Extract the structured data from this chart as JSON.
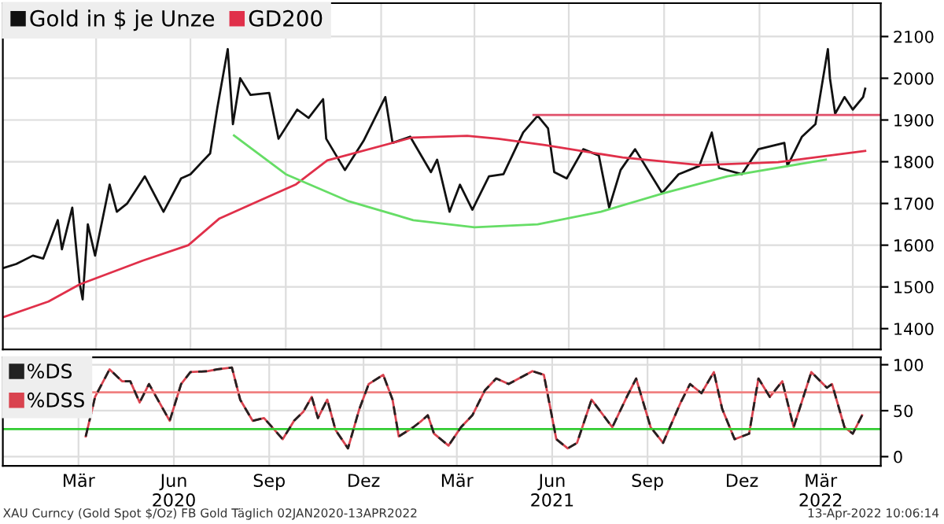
{
  "chart_data": [
    {
      "type": "line",
      "legend": "top left",
      "grid": true,
      "tick_labels": "y",
      "marker": "none",
      "xlim": [
        "2020-01-02",
        "2022-04-28"
      ],
      "ylim": [
        1350,
        2180
      ],
      "yticks": [
        1400,
        1500,
        1600,
        1700,
        1800,
        1900,
        2000,
        2100
      ],
      "series": [
        {
          "name": "Gold in $ je Unze",
          "color": "#111111",
          "x": [
            "2020-01-02",
            "2020-01-15",
            "2020-01-31",
            "2020-02-10",
            "2020-02-24",
            "2020-02-28",
            "2020-03-09",
            "2020-03-16",
            "2020-03-19",
            "2020-03-24",
            "2020-03-31",
            "2020-04-14",
            "2020-04-21",
            "2020-05-01",
            "2020-05-18",
            "2020-06-05",
            "2020-06-22",
            "2020-07-01",
            "2020-07-20",
            "2020-07-27",
            "2020-08-06",
            "2020-08-11",
            "2020-08-18",
            "2020-08-28",
            "2020-09-15",
            "2020-09-24",
            "2020-10-12",
            "2020-10-23",
            "2020-11-06",
            "2020-11-09",
            "2020-11-27",
            "2020-12-15",
            "2021-01-05",
            "2021-01-12",
            "2021-01-29",
            "2021-02-18",
            "2021-02-24",
            "2021-03-08",
            "2021-03-18",
            "2021-03-30",
            "2021-04-15",
            "2021-04-29",
            "2021-05-18",
            "2021-06-01",
            "2021-06-11",
            "2021-06-17",
            "2021-06-29",
            "2021-07-15",
            "2021-07-30",
            "2021-08-09",
            "2021-08-20",
            "2021-09-03",
            "2021-09-29",
            "2021-10-15",
            "2021-11-04",
            "2021-11-16",
            "2021-11-23",
            "2021-12-15",
            "2021-12-31",
            "2022-01-25",
            "2022-01-28",
            "2022-02-11",
            "2022-02-24",
            "2022-03-08",
            "2022-03-10",
            "2022-03-15",
            "2022-03-24",
            "2022-04-01",
            "2022-04-11",
            "2022-04-13"
          ],
          "values": [
            1545,
            1555,
            1575,
            1568,
            1660,
            1590,
            1690,
            1510,
            1470,
            1650,
            1575,
            1745,
            1680,
            1700,
            1765,
            1680,
            1760,
            1770,
            1820,
            1930,
            2070,
            1890,
            2000,
            1960,
            1965,
            1855,
            1925,
            1905,
            1950,
            1855,
            1780,
            1850,
            1955,
            1845,
            1860,
            1775,
            1805,
            1680,
            1745,
            1685,
            1765,
            1770,
            1870,
            1910,
            1880,
            1775,
            1760,
            1830,
            1815,
            1690,
            1780,
            1830,
            1725,
            1770,
            1790,
            1870,
            1785,
            1770,
            1830,
            1845,
            1790,
            1860,
            1890,
            2070,
            2000,
            1915,
            1955,
            1925,
            1955,
            1975
          ]
        },
        {
          "name": "GD200",
          "color": "#e0304a",
          "x": [
            "2020-01-02",
            "2020-02-15",
            "2020-03-16",
            "2020-05-16",
            "2020-06-29",
            "2020-07-29",
            "2020-10-11",
            "2020-11-10",
            "2021-01-31",
            "2021-03-25",
            "2021-04-24",
            "2021-06-08",
            "2021-08-22",
            "2021-11-05",
            "2022-01-19",
            "2022-04-13"
          ],
          "values": [
            1427,
            1465,
            1506,
            1563,
            1600,
            1664,
            1746,
            1803,
            1858,
            1862,
            1855,
            1840,
            1810,
            1792,
            1799,
            1826
          ]
        },
        {
          "color": "#66dd66",
          "x": [
            "2020-08-12",
            "2020-10-01",
            "2020-12-01",
            "2021-02-01",
            "2021-04-01",
            "2021-06-01",
            "2021-08-01",
            "2021-10-01",
            "2021-12-01",
            "2022-03-06"
          ],
          "values": [
            1863,
            1770,
            1705,
            1660,
            1643,
            1650,
            1680,
            1725,
            1765,
            1805
          ]
        },
        {
          "color": "#e0506a",
          "x": [
            "2021-05-28",
            "2022-04-28"
          ],
          "values": [
            1912,
            1912
          ]
        }
      ]
    },
    {
      "type": "line",
      "legend": "top left",
      "grid": true,
      "marker": "none",
      "xlim": [
        "2020-01-02",
        "2022-04-28"
      ],
      "ylim": [
        -10,
        108
      ],
      "yticks": [
        0,
        50,
        100
      ],
      "xticks": [
        {
          "value": "2020-03-15",
          "label": "Mär"
        },
        {
          "value": "2020-06-15",
          "label": "Jun\n2020"
        },
        {
          "value": "2020-09-15",
          "label": "Sep"
        },
        {
          "value": "2020-12-15",
          "label": "Dez"
        },
        {
          "value": "2021-03-15",
          "label": "Mär"
        },
        {
          "value": "2021-06-15",
          "label": "Jun\n2021"
        },
        {
          "value": "2021-09-15",
          "label": "Sep"
        },
        {
          "value": "2021-12-15",
          "label": "Dez"
        },
        {
          "value": "2022-03-01",
          "label": "Mär\n2022"
        }
      ],
      "ref_lines": [
        {
          "axis": "y",
          "value": 70,
          "color": "#f08080"
        },
        {
          "axis": "y",
          "value": 30,
          "color": "#33cc33"
        }
      ],
      "annotations": [
        "XAU Curncy (Gold Spot $/Oz) FB Gold Täglich 02JAN2020-13APR2022",
        "13-Apr-2022 10:06:14"
      ],
      "series": [
        {
          "name": "%DS",
          "color": "#222222",
          "line_style": "dashed",
          "x": [
            "2020-03-22",
            "2020-03-31",
            "2020-04-14",
            "2020-04-26",
            "2020-05-04",
            "2020-05-13",
            "2020-05-22",
            "2020-06-11",
            "2020-06-22",
            "2020-07-01",
            "2020-07-18",
            "2020-07-27",
            "2020-08-10",
            "2020-08-18",
            "2020-08-30",
            "2020-09-10",
            "2020-09-28",
            "2020-10-09",
            "2020-10-18",
            "2020-10-26",
            "2020-11-01",
            "2020-11-10",
            "2020-11-18",
            "2020-11-30",
            "2020-12-11",
            "2020-12-20",
            "2021-01-03",
            "2021-01-12",
            "2021-01-18",
            "2021-02-01",
            "2021-02-09",
            "2021-02-15",
            "2021-02-21",
            "2021-03-07",
            "2021-03-19",
            "2021-03-30",
            "2021-04-11",
            "2021-04-22",
            "2021-05-04",
            "2021-05-27",
            "2021-06-07",
            "2021-06-19",
            "2021-06-30",
            "2021-07-09",
            "2021-07-23",
            "2021-08-12",
            "2021-08-26",
            "2021-09-04",
            "2021-09-18",
            "2021-09-30",
            "2021-10-17",
            "2021-10-26",
            "2021-11-06",
            "2021-11-18",
            "2021-11-26",
            "2021-12-08",
            "2021-12-22",
            "2021-12-31",
            "2022-01-11",
            "2022-01-23",
            "2022-02-03",
            "2022-02-20",
            "2022-03-07",
            "2022-03-12",
            "2022-03-24",
            "2022-04-01",
            "2022-04-10"
          ],
          "values": [
            22,
            65,
            95,
            82,
            82,
            59,
            79,
            39,
            79,
            92,
            93,
            95,
            97,
            62,
            39,
            42,
            19,
            39,
            49,
            65,
            42,
            62,
            29,
            9,
            52,
            79,
            89,
            62,
            22,
            32,
            39,
            45,
            25,
            12,
            32,
            45,
            72,
            85,
            79,
            93,
            89,
            19,
            9,
            15,
            62,
            32,
            65,
            85,
            32,
            15,
            59,
            79,
            69,
            92,
            52,
            19,
            25,
            85,
            65,
            82,
            32,
            92,
            75,
            79,
            32,
            25,
            45
          ]
        },
        {
          "name": "%DSS",
          "color": "#d9434f",
          "line_style": "solid",
          "x": [
            "2020-03-22",
            "2020-03-31",
            "2020-04-14",
            "2020-04-26",
            "2020-05-04",
            "2020-05-13",
            "2020-05-22",
            "2020-06-11",
            "2020-06-22",
            "2020-07-01",
            "2020-07-18",
            "2020-07-27",
            "2020-08-10",
            "2020-08-18",
            "2020-08-30",
            "2020-09-10",
            "2020-09-28",
            "2020-10-09",
            "2020-10-18",
            "2020-10-26",
            "2020-11-01",
            "2020-11-10",
            "2020-11-18",
            "2020-11-30",
            "2020-12-11",
            "2020-12-20",
            "2021-01-03",
            "2021-01-12",
            "2021-01-18",
            "2021-02-01",
            "2021-02-09",
            "2021-02-15",
            "2021-02-21",
            "2021-03-07",
            "2021-03-19",
            "2021-03-30",
            "2021-04-11",
            "2021-04-22",
            "2021-05-04",
            "2021-05-27",
            "2021-06-07",
            "2021-06-19",
            "2021-06-30",
            "2021-07-09",
            "2021-07-23",
            "2021-08-12",
            "2021-08-26",
            "2021-09-04",
            "2021-09-18",
            "2021-09-30",
            "2021-10-17",
            "2021-10-26",
            "2021-11-06",
            "2021-11-18",
            "2021-11-26",
            "2021-12-08",
            "2021-12-22",
            "2021-12-31",
            "2022-01-11",
            "2022-01-23",
            "2022-02-03",
            "2022-02-20",
            "2022-03-07",
            "2022-03-12",
            "2022-03-24",
            "2022-04-01",
            "2022-04-10"
          ],
          "values": [
            22,
            65,
            95,
            82,
            82,
            59,
            79,
            39,
            79,
            92,
            93,
            95,
            97,
            62,
            39,
            42,
            19,
            39,
            49,
            65,
            42,
            62,
            29,
            9,
            52,
            79,
            89,
            62,
            22,
            32,
            39,
            45,
            25,
            12,
            32,
            45,
            72,
            85,
            79,
            93,
            89,
            19,
            9,
            15,
            62,
            32,
            65,
            85,
            32,
            15,
            59,
            79,
            69,
            92,
            52,
            19,
            25,
            85,
            65,
            82,
            32,
            92,
            75,
            79,
            32,
            25,
            45
          ]
        }
      ]
    }
  ]
}
